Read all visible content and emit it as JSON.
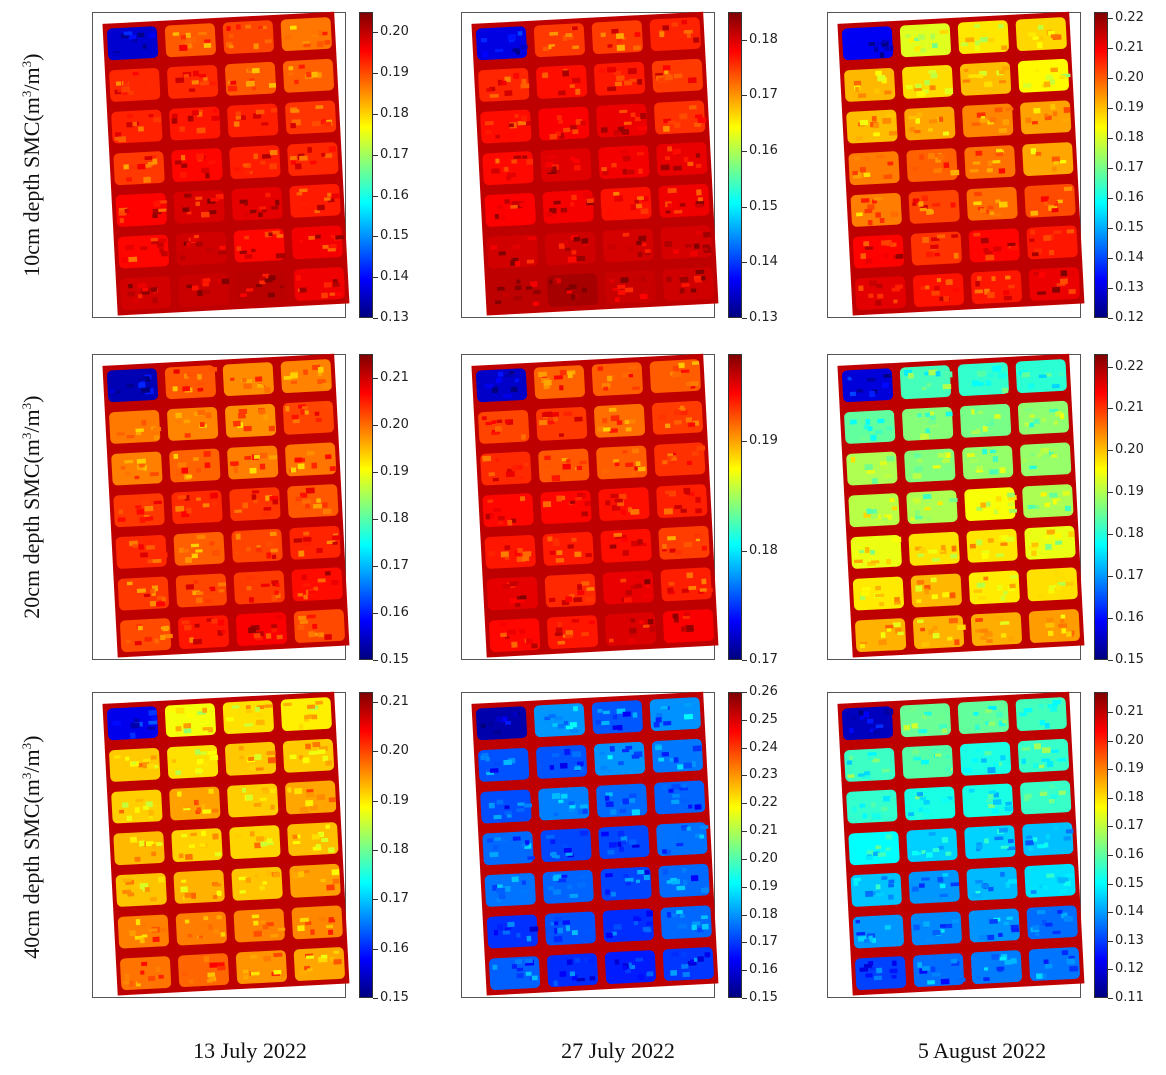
{
  "row_labels": [
    {
      "depth": "10cm depth SMC(m",
      "sup1": "3",
      "mid": "/m",
      "sup2": "3",
      "end": ")"
    },
    {
      "depth": "20cm depth SMC(m",
      "sup1": "3",
      "mid": "/m",
      "sup2": "3",
      "end": ")"
    },
    {
      "depth": "40cm depth SMC(m",
      "sup1": "3",
      "mid": "/m",
      "sup2": "3",
      "end": ")"
    }
  ],
  "col_labels": [
    "13 July 2022",
    "27 July 2022",
    "5 August 2022"
  ],
  "colors": {
    "jet_low": "#7f0000",
    "jet_mid": "#7fff7f",
    "jet_high": "#00007f",
    "border": "#bf0000"
  },
  "chart_data": [
    {
      "type": "heatmap",
      "row": 0,
      "col": 0,
      "colorbar_ticks": [
        0.13,
        0.14,
        0.15,
        0.16,
        0.17,
        0.18,
        0.19,
        0.2
      ],
      "vmin": 0.13,
      "vmax": 0.205,
      "plot_level": 0.85,
      "gradient": 0.15
    },
    {
      "type": "heatmap",
      "row": 0,
      "col": 1,
      "colorbar_ticks": [
        0.13,
        0.14,
        0.15,
        0.16,
        0.17,
        0.18
      ],
      "vmin": 0.13,
      "vmax": 0.185,
      "plot_level": 0.88,
      "gradient": 0.1
    },
    {
      "type": "heatmap",
      "row": 0,
      "col": 2,
      "colorbar_ticks": [
        0.12,
        0.13,
        0.14,
        0.15,
        0.16,
        0.17,
        0.18,
        0.19,
        0.2,
        0.21,
        0.22
      ],
      "vmin": 0.12,
      "vmax": 0.222,
      "plot_level": 0.75,
      "gradient": 0.25
    },
    {
      "type": "heatmap",
      "row": 1,
      "col": 0,
      "colorbar_ticks": [
        0.15,
        0.16,
        0.17,
        0.18,
        0.19,
        0.2,
        0.21
      ],
      "vmin": 0.15,
      "vmax": 0.215,
      "plot_level": 0.8,
      "gradient": 0.08
    },
    {
      "type": "heatmap",
      "row": 1,
      "col": 1,
      "colorbar_ticks": [
        0.17,
        0.18,
        0.19
      ],
      "vmin": 0.17,
      "vmax": 0.198,
      "plot_level": 0.83,
      "gradient": 0.12
    },
    {
      "type": "heatmap",
      "row": 1,
      "col": 2,
      "colorbar_ticks": [
        0.15,
        0.16,
        0.17,
        0.18,
        0.19,
        0.2,
        0.21,
        0.22
      ],
      "vmin": 0.15,
      "vmax": 0.223,
      "plot_level": 0.58,
      "gradient": 0.25
    },
    {
      "type": "heatmap",
      "row": 2,
      "col": 0,
      "colorbar_ticks": [
        0.15,
        0.16,
        0.17,
        0.18,
        0.19,
        0.2,
        0.21
      ],
      "vmin": 0.15,
      "vmax": 0.212,
      "plot_level": 0.7,
      "gradient": 0.1
    },
    {
      "type": "heatmap",
      "row": 2,
      "col": 1,
      "colorbar_ticks": [
        0.15,
        0.16,
        0.17,
        0.18,
        0.19,
        0.2,
        0.21,
        0.22,
        0.23,
        0.24,
        0.25,
        0.26
      ],
      "vmin": 0.15,
      "vmax": 0.26,
      "plot_level": 0.22,
      "gradient": -0.06
    },
    {
      "type": "heatmap",
      "row": 2,
      "col": 2,
      "colorbar_ticks": [
        0.11,
        0.12,
        0.13,
        0.14,
        0.15,
        0.16,
        0.17,
        0.18,
        0.19,
        0.2,
        0.21
      ],
      "vmin": 0.11,
      "vmax": 0.217,
      "plot_level": 0.35,
      "gradient": -0.25
    }
  ]
}
